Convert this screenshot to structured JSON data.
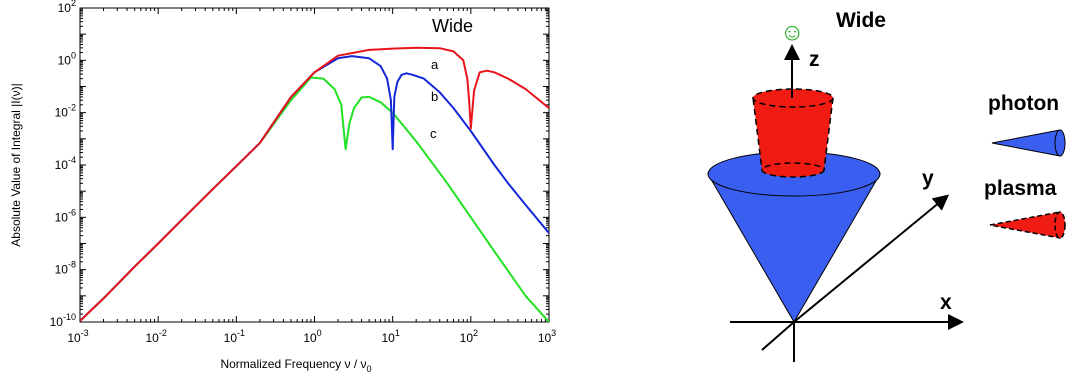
{
  "chart_data": {
    "type": "line",
    "title": "Wide",
    "xlabel": "Normalized Frequency ν / ν",
    "xlabel_sub": "0",
    "ylabel": "Absolute Value of Integral |I(ν)|",
    "x_scale": "log",
    "y_scale": "log",
    "xlim": [
      0.001,
      1000
    ],
    "ylim": [
      1e-10,
      100
    ],
    "grid": false,
    "x_ticks": [
      {
        "base": "10",
        "exp": "-3"
      },
      {
        "base": "10",
        "exp": "-2"
      },
      {
        "base": "10",
        "exp": "-1"
      },
      {
        "base": "10",
        "exp": "0"
      },
      {
        "base": "10",
        "exp": "1"
      },
      {
        "base": "10",
        "exp": "2"
      },
      {
        "base": "10",
        "exp": "3"
      }
    ],
    "y_ticks": [
      {
        "base": "10",
        "exp": "-10"
      },
      {
        "base": "10",
        "exp": "-8"
      },
      {
        "base": "10",
        "exp": "-6"
      },
      {
        "base": "10",
        "exp": "-4"
      },
      {
        "base": "10",
        "exp": "-2"
      },
      {
        "base": "10",
        "exp": "0"
      },
      {
        "base": "10",
        "exp": "2"
      }
    ],
    "series": [
      {
        "name": "a",
        "color": "#e8141b",
        "x": [
          0.001,
          0.002,
          0.005,
          0.01,
          0.02,
          0.05,
          0.1,
          0.2,
          0.5,
          1,
          2,
          5,
          10,
          20,
          40,
          60,
          80,
          90,
          95,
          100,
          110,
          130,
          160,
          200,
          300,
          500,
          1000
        ],
        "y": [
          1.1e-10,
          8e-10,
          1.3e-08,
          1e-07,
          8e-07,
          1.2e-05,
          9e-05,
          0.0007,
          0.04,
          0.35,
          1.5,
          2.5,
          2.8,
          3.0,
          2.9,
          2.2,
          1.0,
          0.2,
          0.03,
          0.0025,
          0.07,
          0.35,
          0.4,
          0.35,
          0.2,
          0.08,
          0.015
        ]
      },
      {
        "name": "b",
        "color": "#1428d8",
        "x": [
          0.001,
          0.002,
          0.005,
          0.01,
          0.02,
          0.05,
          0.1,
          0.2,
          0.5,
          1,
          2,
          3,
          5,
          7,
          8.5,
          9.5,
          10,
          10.5,
          11.5,
          13,
          15,
          18,
          25,
          40,
          60,
          100,
          200,
          300,
          500,
          1000
        ],
        "y": [
          1.1e-10,
          8e-10,
          1.3e-08,
          1e-07,
          8e-07,
          1.2e-05,
          9e-05,
          0.0007,
          0.04,
          0.35,
          1.2,
          1.45,
          1.2,
          0.6,
          0.2,
          0.03,
          0.0004,
          0.04,
          0.15,
          0.28,
          0.32,
          0.28,
          0.2,
          0.06,
          0.015,
          0.002,
          0.0001,
          2e-05,
          3e-06,
          2.5e-07
        ]
      },
      {
        "name": "c",
        "color": "#22e022",
        "x": [
          0.001,
          0.002,
          0.005,
          0.01,
          0.02,
          0.05,
          0.1,
          0.2,
          0.5,
          0.9,
          1.3,
          1.8,
          2.2,
          2.5,
          2.8,
          3.2,
          4,
          5,
          7,
          10,
          20,
          50,
          100,
          200,
          500,
          1000
        ],
        "y": [
          1.1e-10,
          8e-10,
          1.3e-08,
          1e-07,
          8e-07,
          1.2e-05,
          9e-05,
          0.0007,
          0.03,
          0.22,
          0.2,
          0.08,
          0.02,
          0.0004,
          0.004,
          0.015,
          0.038,
          0.04,
          0.025,
          0.01,
          0.0008,
          2e-05,
          1e-06,
          5e-08,
          1e-09,
          1e-10
        ]
      }
    ]
  },
  "diagram": {
    "title": "Wide",
    "smiley": "☺",
    "axis_z": "z",
    "axis_y": "y",
    "axis_x": "x",
    "legend_photon": "photon",
    "legend_plasma": "plasma",
    "colors": {
      "photon": "#3a5ff0",
      "plasma": "#f01c14",
      "smiley": "#17a817"
    }
  }
}
